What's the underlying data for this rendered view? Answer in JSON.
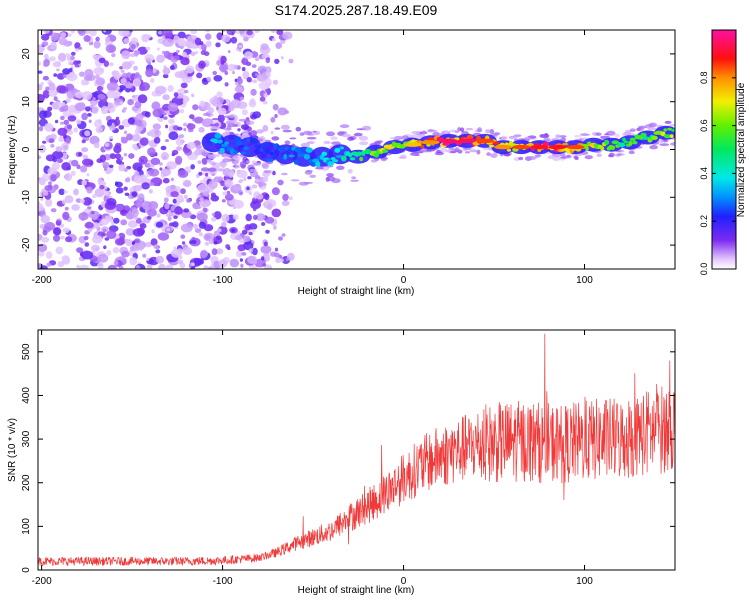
{
  "chart_data": [
    {
      "type": "heatmap",
      "title": "S174.2025.287.18.49.E09",
      "xlabel": "Height of straight line (km)",
      "ylabel": "Frequency (Hz)",
      "xlim": [
        -202,
        150
      ],
      "ylim": [
        -25,
        25
      ],
      "x_ticks": [
        -200,
        -100,
        0,
        100
      ],
      "y_ticks": [
        -20,
        -10,
        0,
        10,
        20
      ],
      "colorbar": {
        "label": "Normalized spectral amplitude",
        "range": [
          0.0,
          1.0
        ],
        "ticks": [
          0.0,
          0.2,
          0.4,
          0.6,
          0.8
        ],
        "tick_labels": [
          "0.0",
          "0.2",
          "0.4",
          "0.6",
          "0.8"
        ]
      },
      "ridge": {
        "x": [
          -105,
          -95,
          -85,
          -75,
          -65,
          -55,
          -45,
          -35,
          -25,
          -15,
          -5,
          5,
          15,
          25,
          35,
          45,
          55,
          65,
          75,
          85,
          95,
          105,
          115,
          125,
          135,
          145
        ],
        "frequency": [
          1.5,
          1.0,
          0.5,
          -0.5,
          -1.0,
          -1.5,
          -1.5,
          -1.0,
          -1.5,
          -0.5,
          0.5,
          1.0,
          1.5,
          1.8,
          1.8,
          1.8,
          0.5,
          0.5,
          0.5,
          0.5,
          0.5,
          1.0,
          1.0,
          1.5,
          2.5,
          3.5
        ],
        "amplitude": [
          0.35,
          0.3,
          0.25,
          0.25,
          0.3,
          0.3,
          0.35,
          0.4,
          0.55,
          0.7,
          0.7,
          0.75,
          0.8,
          0.95,
          0.95,
          0.85,
          0.8,
          0.85,
          0.9,
          0.9,
          0.85,
          0.7,
          0.55,
          0.55,
          0.55,
          0.65
        ]
      }
    },
    {
      "type": "line",
      "title": "",
      "xlabel": "Height of straight line (km)",
      "ylabel": "SNR (10 * v/v)",
      "xlim": [
        -202,
        150
      ],
      "ylim": [
        0,
        550
      ],
      "x_ticks": [
        -200,
        -100,
        0,
        100
      ],
      "y_ticks": [
        0,
        100,
        200,
        300,
        400,
        500
      ],
      "series": [
        {
          "name": "SNR",
          "color": "#f03a3a",
          "x": [
            -202,
            -180,
            -160,
            -140,
            -120,
            -100,
            -90,
            -80,
            -70,
            -60,
            -50,
            -40,
            -30,
            -20,
            -10,
            0,
            10,
            20,
            30,
            40,
            50,
            60,
            70,
            80,
            90,
            100,
            110,
            120,
            130,
            140,
            150
          ],
          "values": [
            20,
            20,
            20,
            20,
            20,
            22,
            25,
            28,
            40,
            60,
            75,
            90,
            120,
            145,
            175,
            210,
            240,
            260,
            275,
            285,
            290,
            295,
            295,
            290,
            290,
            295,
            300,
            300,
            310,
            320,
            330
          ]
        }
      ]
    }
  ]
}
